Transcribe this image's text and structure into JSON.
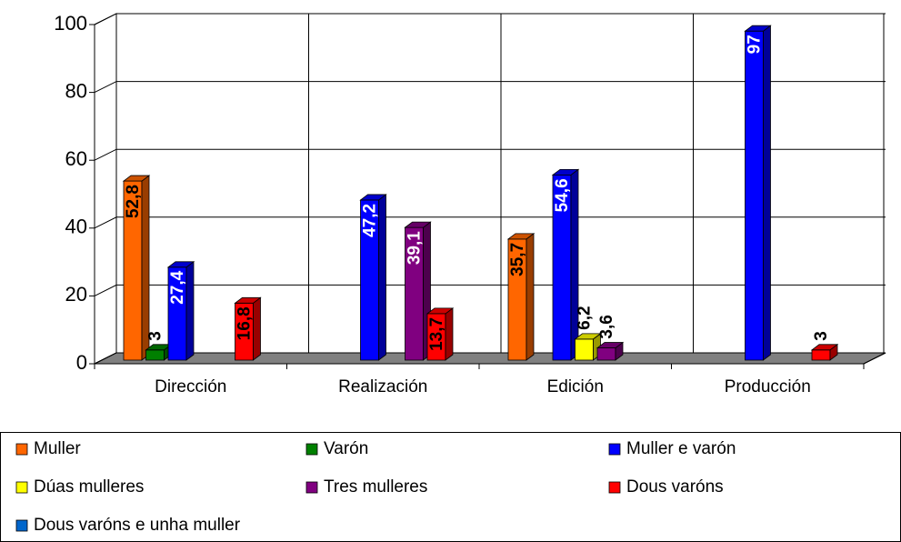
{
  "chart_data": {
    "type": "bar3d",
    "categories": [
      "Dirección",
      "Realización",
      "Edición",
      "Producción"
    ],
    "series": [
      {
        "name": "Muller",
        "color": "#ff6600",
        "values": [
          52.8,
          null,
          35.7,
          null
        ],
        "value_labels": [
          "52,8",
          null,
          "35,7",
          null
        ]
      },
      {
        "name": "Varón",
        "color": "#008000",
        "values": [
          3,
          null,
          null,
          null
        ],
        "value_labels": [
          "3",
          null,
          null,
          null
        ]
      },
      {
        "name": "Muller e varón",
        "color": "#0000ff",
        "values": [
          27.4,
          47.2,
          54.6,
          97
        ],
        "value_labels": [
          "27,4",
          "47,2",
          "54,6",
          "97"
        ]
      },
      {
        "name": "Dúas mulleres",
        "color": "#ffff00",
        "values": [
          null,
          null,
          6.2,
          null
        ],
        "value_labels": [
          null,
          null,
          "6,2",
          null
        ]
      },
      {
        "name": "Tres mulleres",
        "color": "#800080",
        "values": [
          null,
          39.1,
          3.6,
          null
        ],
        "value_labels": [
          null,
          "39,1",
          "3,6",
          null
        ]
      },
      {
        "name": "Dous varóns",
        "color": "#ff0000",
        "values": [
          16.8,
          13.7,
          null,
          3
        ],
        "value_labels": [
          "16,8",
          "13,7",
          null,
          "3"
        ]
      },
      {
        "name": "Dous varóns e unha muller",
        "color": "#0066cc",
        "values": [
          null,
          null,
          null,
          null
        ],
        "value_labels": [
          null,
          null,
          null,
          null
        ]
      }
    ],
    "ylim": [
      0,
      100
    ],
    "yticks": [
      0,
      20,
      40,
      60,
      80,
      100
    ],
    "grid": true,
    "legend": "bottom"
  }
}
